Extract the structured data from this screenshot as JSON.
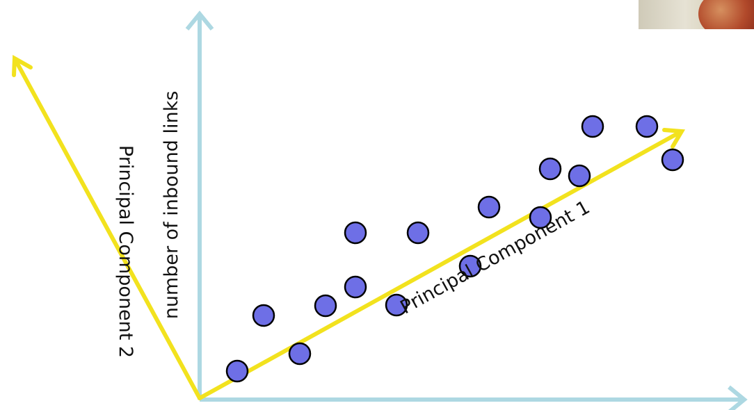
{
  "labels": {
    "y_axis": "number of inbound links",
    "pc1": "Principal Component 1",
    "pc2": "Principal Component 2"
  },
  "colors": {
    "axis": "#add8e2",
    "principal_component": "#f2e21e",
    "point_fill": "#6e6fe6",
    "point_stroke": "#000000"
  },
  "chart_data": {
    "type": "scatter",
    "x": [
      0.54,
      0.92,
      1.44,
      1.81,
      2.24,
      2.24,
      2.83,
      3.14,
      3.89,
      4.16,
      4.9,
      5.04,
      5.46,
      5.65,
      6.43,
      6.8
    ],
    "y": [
      0.41,
      1.21,
      0.66,
      1.35,
      1.62,
      2.4,
      1.36,
      2.4,
      1.92,
      2.77,
      2.62,
      3.32,
      3.22,
      3.93,
      3.93,
      3.45
    ],
    "xlim": [
      0,
      7.7
    ],
    "ylim": [
      0,
      5.4
    ]
  },
  "webcam": {
    "icon": "webcam-thumbnail-icon"
  }
}
